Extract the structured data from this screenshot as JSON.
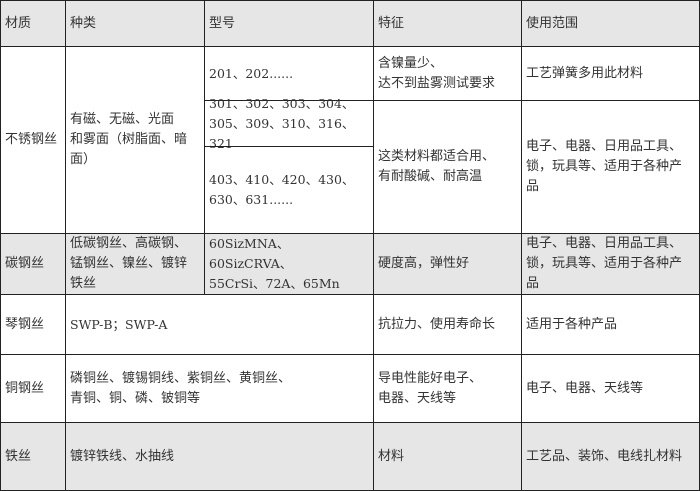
{
  "header": {
    "material": "材质",
    "kind": "种类",
    "model": "型号",
    "feature": "特征",
    "usage": "使用范围"
  },
  "rows": {
    "stainless": {
      "material": "不锈钢丝",
      "kind": "有磁、无磁、光面\n和雾面（树脂面、暗\n面）",
      "models": [
        "201、202......",
        "301、302、303、304、\n305、309、310、316、321",
        "403、410、420、430、\n630、631......"
      ],
      "feature_1": "含镍量少、\n达不到盐雾测试要求",
      "usage_1": "工艺弹簧多用此材料",
      "feature_2": "这类材料都适合用、\n有耐酸碱、耐高温",
      "usage_2": "电子、电器、日用品工具、\n锁，玩具等、适用于各种产\n品"
    },
    "carbon": {
      "material": "碳钢丝",
      "kind": "低碳钢丝、高碳钢、\n锰钢丝、镍丝、镀锌\n铁丝",
      "model": "60SizMNA、60SizCRVA、\n55CrSi、72A、65Mn",
      "feature": "硬度高，弹性好",
      "usage": "电子、电器、日用品工具、\n锁，玩具等、适用于各种产\n品"
    },
    "piano": {
      "material": "琴钢丝",
      "kind": "SWP-B；SWP-A",
      "feature": "抗拉力、使用寿命长",
      "usage": "适用于各种产品"
    },
    "copper": {
      "material": "铜钢丝",
      "kind": "磷铜丝、镀锡铜线、紫铜丝、黄铜丝、\n青铜、铜、磷、铍铜等",
      "feature": "导电性能好电子、\n电器、天线等",
      "usage": "电子、电器、天线等"
    },
    "iron": {
      "material": "铁丝",
      "kind": "镀锌铁线、水抽线",
      "feature": "材料",
      "usage": "工艺品、装饰、电线扎材料"
    }
  }
}
